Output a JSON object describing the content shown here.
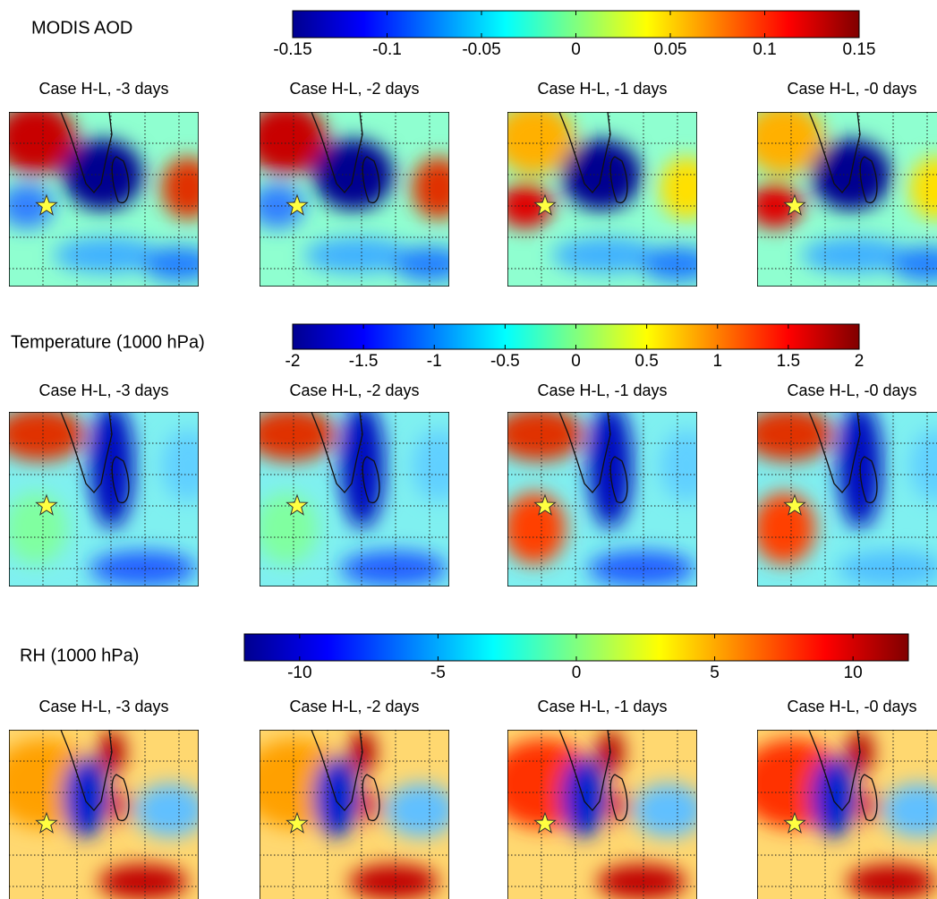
{
  "rows": [
    {
      "title": "MODIS AOD",
      "colorbar": {
        "lim": [
          -0.15,
          0.15
        ],
        "ticks": [
          -0.15,
          -0.1,
          -0.05,
          0,
          0.05,
          0.1,
          0.15
        ]
      },
      "panels": [
        "Case H-L, -3 days",
        "Case H-L, -2 days",
        "Case H-L, -1 days",
        "Case H-L, -0 days"
      ]
    },
    {
      "title": "Temperature (1000 hPa)",
      "colorbar": {
        "lim": [
          -2,
          2
        ],
        "ticks": [
          -2,
          -1.5,
          -1,
          -0.5,
          0,
          0.5,
          1,
          1.5,
          2
        ]
      },
      "panels": [
        "Case H-L, -3 days",
        "Case H-L, -2 days",
        "Case H-L, -1 days",
        "Case H-L, -0 days"
      ]
    },
    {
      "title": "RH (1000 hPa)",
      "colorbar": {
        "lim": [
          -12,
          12
        ],
        "ticks": [
          -10,
          -5,
          0,
          5,
          10
        ]
      },
      "panels": [
        "Case H-L, -3 days",
        "Case H-L, -2 days",
        "Case H-L, -1 days",
        "Case H-L, -0 days"
      ]
    }
  ]
}
